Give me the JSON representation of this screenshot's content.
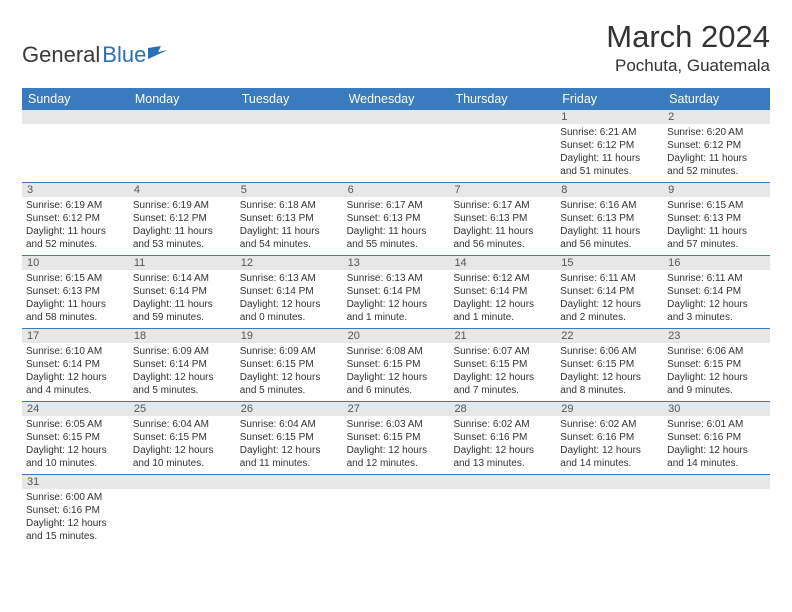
{
  "logo": {
    "text_dark": "General",
    "text_blue": "Blue"
  },
  "title": "March 2024",
  "location": "Pochuta, Guatemala",
  "colors": {
    "header_bg": "#3a7bbf",
    "daynum_bg": "#e7e7e7",
    "text": "#333333",
    "rule": "#3a7bbf"
  },
  "day_names": [
    "Sunday",
    "Monday",
    "Tuesday",
    "Wednesday",
    "Thursday",
    "Friday",
    "Saturday"
  ],
  "weeks": [
    {
      "nums": [
        "",
        "",
        "",
        "",
        "",
        "1",
        "2"
      ],
      "cells": [
        null,
        null,
        null,
        null,
        null,
        {
          "sunrise": "Sunrise: 6:21 AM",
          "sunset": "Sunset: 6:12 PM",
          "day1": "Daylight: 11 hours",
          "day2": "and 51 minutes."
        },
        {
          "sunrise": "Sunrise: 6:20 AM",
          "sunset": "Sunset: 6:12 PM",
          "day1": "Daylight: 11 hours",
          "day2": "and 52 minutes."
        }
      ]
    },
    {
      "nums": [
        "3",
        "4",
        "5",
        "6",
        "7",
        "8",
        "9"
      ],
      "cells": [
        {
          "sunrise": "Sunrise: 6:19 AM",
          "sunset": "Sunset: 6:12 PM",
          "day1": "Daylight: 11 hours",
          "day2": "and 52 minutes."
        },
        {
          "sunrise": "Sunrise: 6:19 AM",
          "sunset": "Sunset: 6:12 PM",
          "day1": "Daylight: 11 hours",
          "day2": "and 53 minutes."
        },
        {
          "sunrise": "Sunrise: 6:18 AM",
          "sunset": "Sunset: 6:13 PM",
          "day1": "Daylight: 11 hours",
          "day2": "and 54 minutes."
        },
        {
          "sunrise": "Sunrise: 6:17 AM",
          "sunset": "Sunset: 6:13 PM",
          "day1": "Daylight: 11 hours",
          "day2": "and 55 minutes."
        },
        {
          "sunrise": "Sunrise: 6:17 AM",
          "sunset": "Sunset: 6:13 PM",
          "day1": "Daylight: 11 hours",
          "day2": "and 56 minutes."
        },
        {
          "sunrise": "Sunrise: 6:16 AM",
          "sunset": "Sunset: 6:13 PM",
          "day1": "Daylight: 11 hours",
          "day2": "and 56 minutes."
        },
        {
          "sunrise": "Sunrise: 6:15 AM",
          "sunset": "Sunset: 6:13 PM",
          "day1": "Daylight: 11 hours",
          "day2": "and 57 minutes."
        }
      ]
    },
    {
      "nums": [
        "10",
        "11",
        "12",
        "13",
        "14",
        "15",
        "16"
      ],
      "cells": [
        {
          "sunrise": "Sunrise: 6:15 AM",
          "sunset": "Sunset: 6:13 PM",
          "day1": "Daylight: 11 hours",
          "day2": "and 58 minutes."
        },
        {
          "sunrise": "Sunrise: 6:14 AM",
          "sunset": "Sunset: 6:14 PM",
          "day1": "Daylight: 11 hours",
          "day2": "and 59 minutes."
        },
        {
          "sunrise": "Sunrise: 6:13 AM",
          "sunset": "Sunset: 6:14 PM",
          "day1": "Daylight: 12 hours",
          "day2": "and 0 minutes."
        },
        {
          "sunrise": "Sunrise: 6:13 AM",
          "sunset": "Sunset: 6:14 PM",
          "day1": "Daylight: 12 hours",
          "day2": "and 1 minute."
        },
        {
          "sunrise": "Sunrise: 6:12 AM",
          "sunset": "Sunset: 6:14 PM",
          "day1": "Daylight: 12 hours",
          "day2": "and 1 minute."
        },
        {
          "sunrise": "Sunrise: 6:11 AM",
          "sunset": "Sunset: 6:14 PM",
          "day1": "Daylight: 12 hours",
          "day2": "and 2 minutes."
        },
        {
          "sunrise": "Sunrise: 6:11 AM",
          "sunset": "Sunset: 6:14 PM",
          "day1": "Daylight: 12 hours",
          "day2": "and 3 minutes."
        }
      ]
    },
    {
      "nums": [
        "17",
        "18",
        "19",
        "20",
        "21",
        "22",
        "23"
      ],
      "cells": [
        {
          "sunrise": "Sunrise: 6:10 AM",
          "sunset": "Sunset: 6:14 PM",
          "day1": "Daylight: 12 hours",
          "day2": "and 4 minutes."
        },
        {
          "sunrise": "Sunrise: 6:09 AM",
          "sunset": "Sunset: 6:14 PM",
          "day1": "Daylight: 12 hours",
          "day2": "and 5 minutes."
        },
        {
          "sunrise": "Sunrise: 6:09 AM",
          "sunset": "Sunset: 6:15 PM",
          "day1": "Daylight: 12 hours",
          "day2": "and 5 minutes."
        },
        {
          "sunrise": "Sunrise: 6:08 AM",
          "sunset": "Sunset: 6:15 PM",
          "day1": "Daylight: 12 hours",
          "day2": "and 6 minutes."
        },
        {
          "sunrise": "Sunrise: 6:07 AM",
          "sunset": "Sunset: 6:15 PM",
          "day1": "Daylight: 12 hours",
          "day2": "and 7 minutes."
        },
        {
          "sunrise": "Sunrise: 6:06 AM",
          "sunset": "Sunset: 6:15 PM",
          "day1": "Daylight: 12 hours",
          "day2": "and 8 minutes."
        },
        {
          "sunrise": "Sunrise: 6:06 AM",
          "sunset": "Sunset: 6:15 PM",
          "day1": "Daylight: 12 hours",
          "day2": "and 9 minutes."
        }
      ]
    },
    {
      "nums": [
        "24",
        "25",
        "26",
        "27",
        "28",
        "29",
        "30"
      ],
      "cells": [
        {
          "sunrise": "Sunrise: 6:05 AM",
          "sunset": "Sunset: 6:15 PM",
          "day1": "Daylight: 12 hours",
          "day2": "and 10 minutes."
        },
        {
          "sunrise": "Sunrise: 6:04 AM",
          "sunset": "Sunset: 6:15 PM",
          "day1": "Daylight: 12 hours",
          "day2": "and 10 minutes."
        },
        {
          "sunrise": "Sunrise: 6:04 AM",
          "sunset": "Sunset: 6:15 PM",
          "day1": "Daylight: 12 hours",
          "day2": "and 11 minutes."
        },
        {
          "sunrise": "Sunrise: 6:03 AM",
          "sunset": "Sunset: 6:15 PM",
          "day1": "Daylight: 12 hours",
          "day2": "and 12 minutes."
        },
        {
          "sunrise": "Sunrise: 6:02 AM",
          "sunset": "Sunset: 6:16 PM",
          "day1": "Daylight: 12 hours",
          "day2": "and 13 minutes."
        },
        {
          "sunrise": "Sunrise: 6:02 AM",
          "sunset": "Sunset: 6:16 PM",
          "day1": "Daylight: 12 hours",
          "day2": "and 14 minutes."
        },
        {
          "sunrise": "Sunrise: 6:01 AM",
          "sunset": "Sunset: 6:16 PM",
          "day1": "Daylight: 12 hours",
          "day2": "and 14 minutes."
        }
      ]
    },
    {
      "nums": [
        "31",
        "",
        "",
        "",
        "",
        "",
        ""
      ],
      "cells": [
        {
          "sunrise": "Sunrise: 6:00 AM",
          "sunset": "Sunset: 6:16 PM",
          "day1": "Daylight: 12 hours",
          "day2": "and 15 minutes."
        },
        null,
        null,
        null,
        null,
        null,
        null
      ]
    }
  ]
}
